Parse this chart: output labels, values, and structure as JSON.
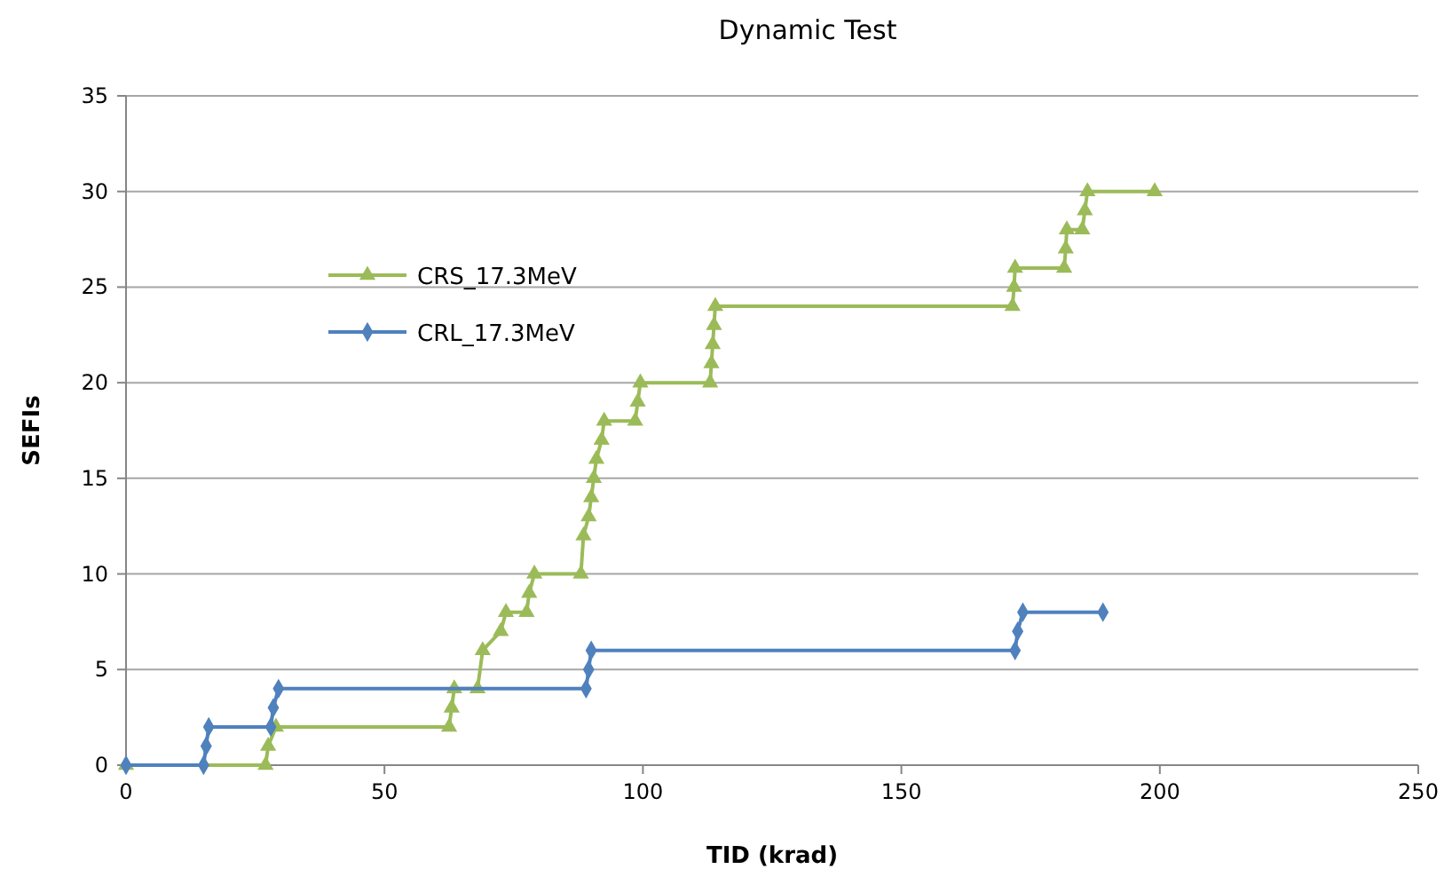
{
  "chart_data": {
    "type": "line",
    "title": "Dynamic Test",
    "xlabel": "TID (krad)",
    "ylabel": "SEFIs",
    "xlim": [
      0,
      250
    ],
    "xticks": [
      0,
      50,
      100,
      150,
      200,
      250
    ],
    "ylim": [
      0,
      35
    ],
    "yticks": [
      0,
      5,
      10,
      15,
      20,
      25,
      30,
      35
    ],
    "grid": "y",
    "legend": "top left",
    "series": [
      {
        "name": "CRS_17.3MeV",
        "color": "#9bbb59",
        "marker": "triangle",
        "x": [
          0,
          27,
          27.5,
          29,
          62.5,
          63,
          63.5,
          68,
          69,
          72.5,
          73.5,
          77.5,
          78,
          79,
          88,
          88.5,
          89.5,
          90,
          90.5,
          91,
          92,
          92.5,
          98.5,
          99,
          99.5,
          113,
          113.25,
          113.5,
          113.75,
          114,
          171.5,
          171.8,
          172,
          181.5,
          181.8,
          182,
          185,
          185.5,
          186,
          199
        ],
        "values": [
          0,
          0,
          1,
          2,
          2,
          3,
          4,
          4,
          6,
          7,
          8,
          8,
          9,
          10,
          10,
          12,
          13,
          14,
          15,
          16,
          17,
          18,
          18,
          19,
          20,
          20,
          21,
          22,
          23,
          24,
          24,
          25,
          26,
          26,
          27,
          28,
          28,
          29,
          30,
          30
        ]
      },
      {
        "name": "CRL_17.3MeV",
        "color": "#4f81bd",
        "marker": "diamond",
        "x": [
          0,
          15,
          15.5,
          16,
          28,
          28.5,
          29.5,
          89,
          89.5,
          90,
          172,
          172.5,
          173.5,
          189
        ],
        "values": [
          0,
          0,
          1,
          2,
          2,
          3,
          4,
          4,
          5,
          6,
          6,
          7,
          8,
          8
        ]
      }
    ]
  }
}
